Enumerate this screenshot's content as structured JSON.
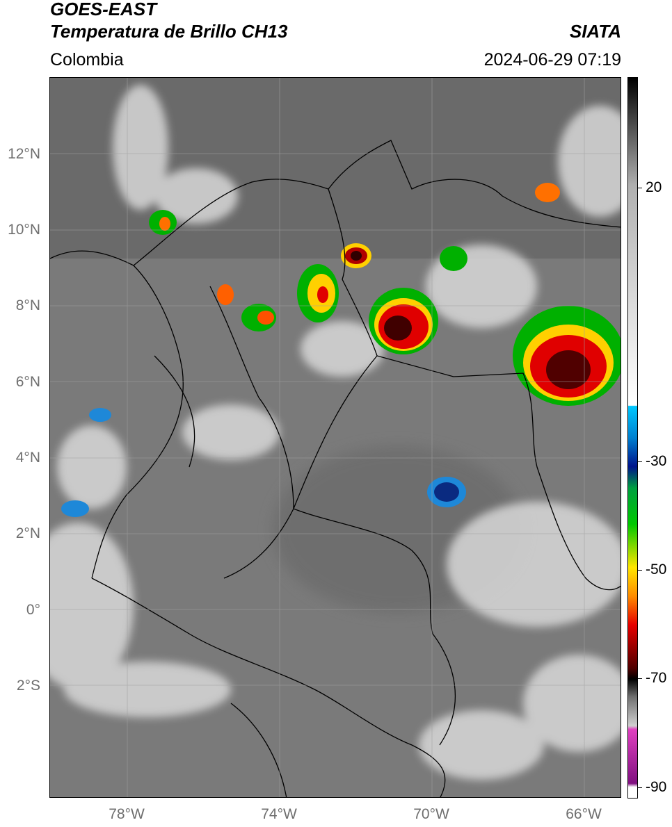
{
  "header": {
    "line1": "GOES-EAST",
    "line2": "Temperatura de Brillo CH13",
    "brand": "SIATA",
    "region": "Colombia",
    "timestamp": "2024-06-29 07:19"
  },
  "map": {
    "lat_labels": [
      "12°N",
      "10°N",
      "8°N",
      "6°N",
      "4°N",
      "2°N",
      "0°",
      "2°S"
    ],
    "lon_labels": [
      "78°W",
      "74°W",
      "70°W",
      "66°W"
    ],
    "background_color": "#7d7d7d",
    "border_color": "#000000",
    "grid_color": "#a0a0a0"
  },
  "colorbar": {
    "tick_labels": [
      "20",
      "-30",
      "-50",
      "-70",
      "-90"
    ],
    "colors": {
      "warm": "#ffffff",
      "cyan": "#00c8ff",
      "navy": "#00148c",
      "green": "#00c800",
      "yellow": "#ffe600",
      "orange": "#ff8c00",
      "red": "#e60000",
      "maroon": "#500000",
      "black": "#000000",
      "magenta": "#e040c0",
      "purple": "#801080"
    }
  }
}
